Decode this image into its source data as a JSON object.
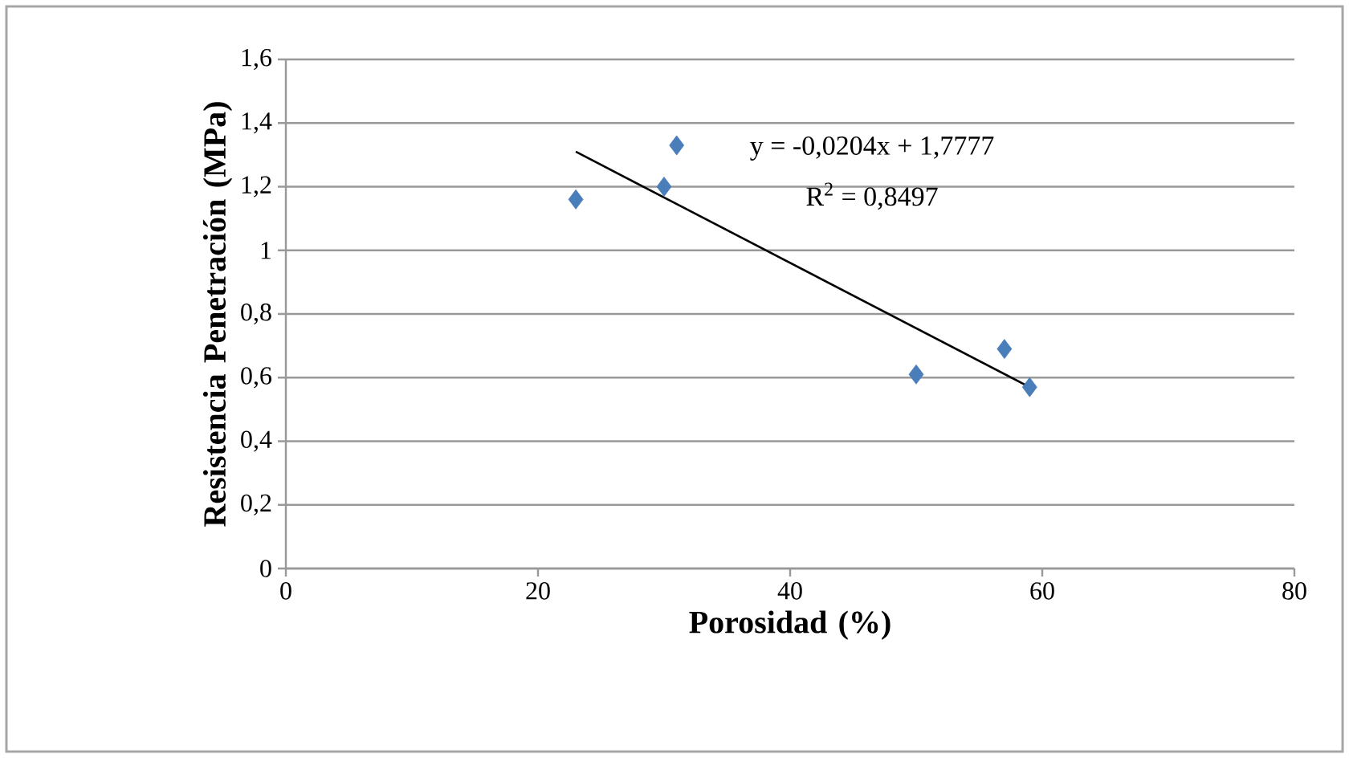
{
  "chart_data": {
    "type": "scatter",
    "xlabel": "Porosidad (%)",
    "ylabel": "Resistencia Penetración (MPa)",
    "xlim": [
      0,
      80
    ],
    "xticks": [
      0,
      20,
      40,
      60,
      80
    ],
    "ylim": [
      0,
      1.6
    ],
    "yticks": [
      0,
      {
        "value": 0.2,
        "label": "0,2"
      },
      {
        "value": 0.4,
        "label": "0,4"
      },
      {
        "value": 0.6,
        "label": "0,6"
      },
      {
        "value": 0.8,
        "label": "0,8"
      },
      1,
      {
        "value": 1.2,
        "label": "1,2"
      },
      {
        "value": 1.4,
        "label": "1,4"
      },
      {
        "value": 1.6,
        "label": "1,6"
      }
    ],
    "grid": "y",
    "marker": "diamond",
    "series": [
      {
        "color": "#4a7ebb",
        "x": [
          23,
          30,
          31,
          50,
          57,
          59
        ],
        "values": [
          1.16,
          1.2,
          1.33,
          0.61,
          0.69,
          0.57
        ]
      },
      {
        "type": "line",
        "color": "#000000",
        "line_style": "solid",
        "marker": "none",
        "x": [
          23,
          59
        ],
        "values": [
          1.31,
          0.57
        ]
      }
    ],
    "annotations": [
      "y = -0,0204x + 1,7777",
      "R$^{2}$ = 0,8497"
    ]
  }
}
